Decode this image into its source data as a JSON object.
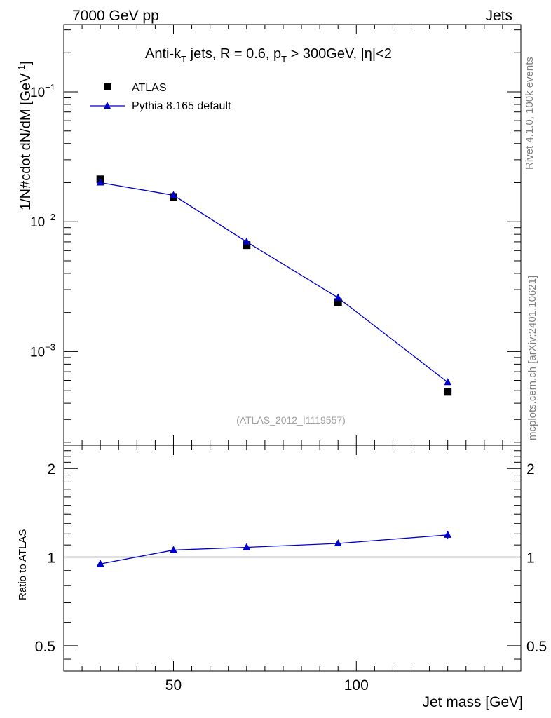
{
  "header": {
    "left": "7000 GeV pp",
    "right": "Jets"
  },
  "side_labels": {
    "rivet": "Rivet 4.1.0,  100k events",
    "mcplots": "mcplots.cern.ch [arXiv:2401.10621]"
  },
  "watermark": "(ATLAS_2012_I1119557)",
  "colors": {
    "data": "#000000",
    "mc": "#0000cc",
    "axis": "#000000",
    "side_text": "#808080"
  },
  "chart_data": [
    {
      "type": "scatter",
      "panel": "main",
      "title_parts": {
        "main": "Anti-k",
        "sub1": "T",
        "mid": " jets, R = 0.6, p",
        "sub2": "T",
        "end": " > 300GeV, |η|<2"
      },
      "ylabel": "1/N#cdot dN/dM [GeV",
      "ylabel_sup": "-1",
      "ylabel_close": "]",
      "yscale": "log",
      "xlim": [
        20,
        145
      ],
      "ylim": [
        0.00019,
        0.33
      ],
      "yticks": [
        {
          "value": 0.1,
          "base": "10",
          "exp": "−1"
        },
        {
          "value": 0.01,
          "base": "10",
          "exp": "−2"
        },
        {
          "value": 0.001,
          "base": "10",
          "exp": "−3"
        }
      ],
      "legend": [
        {
          "label": "ATLAS",
          "marker": "square"
        },
        {
          "label": "Pythia 8.165 default",
          "marker": "triangle"
        }
      ],
      "series": [
        {
          "name": "ATLAS",
          "x": [
            30,
            50,
            70,
            95,
            125
          ],
          "y": [
            0.0212,
            0.0155,
            0.0066,
            0.0024,
            0.00049
          ]
        },
        {
          "name": "Pythia 8.165 default",
          "x": [
            30,
            50,
            70,
            95,
            125
          ],
          "y": [
            0.02,
            0.016,
            0.007,
            0.0026,
            0.00058
          ]
        }
      ]
    },
    {
      "type": "line",
      "panel": "ratio",
      "ylabel": "Ratio to ATLAS",
      "xlabel": "Jet mass [GeV]",
      "yscale": "log",
      "xlim": [
        20,
        145
      ],
      "ylim": [
        0.41,
        2.4
      ],
      "xticks": [
        {
          "value": 50,
          "label": "50"
        },
        {
          "value": 100,
          "label": "100"
        }
      ],
      "yticks": [
        {
          "value": 2,
          "label": "2"
        },
        {
          "value": 1,
          "label": "1"
        },
        {
          "value": 0.5,
          "label": "0.5"
        }
      ],
      "reference": 1,
      "series": [
        {
          "name": "Pythia 8.165 default / ATLAS",
          "x": [
            30,
            50,
            70,
            95,
            125
          ],
          "y": [
            0.948,
            1.057,
            1.08,
            1.113,
            1.19
          ],
          "err": [
            0.005,
            0.006,
            0.008,
            0.012,
            0.035
          ]
        }
      ]
    }
  ]
}
